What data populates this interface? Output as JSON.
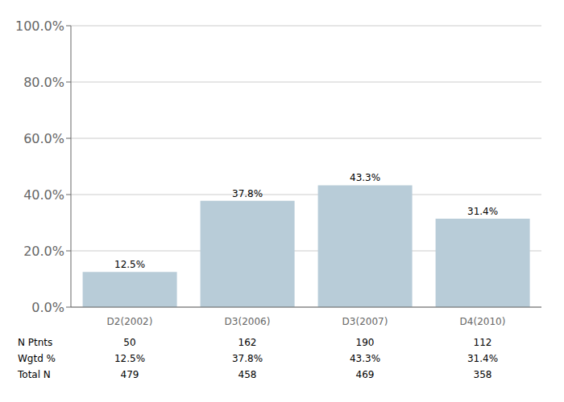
{
  "chart_data": {
    "type": "bar",
    "categories": [
      "D2(2002)",
      "D3(2006)",
      "D3(2007)",
      "D4(2010)"
    ],
    "values": [
      12.5,
      37.8,
      43.3,
      31.4
    ],
    "value_labels": [
      "12.5%",
      "37.8%",
      "43.3%",
      "31.4%"
    ],
    "data_labels": true,
    "color": "#b8ccd8",
    "ylim": [
      0,
      100
    ],
    "yticks": [
      {
        "value": 0,
        "label": "0.0%"
      },
      {
        "value": 20,
        "label": "20.0%"
      },
      {
        "value": 40,
        "label": "40.0%"
      },
      {
        "value": 60,
        "label": "60.0%"
      },
      {
        "value": 80,
        "label": "80.0%"
      },
      {
        "value": 100,
        "label": "100.0%"
      }
    ],
    "grid": true,
    "table": [
      {
        "label": "N Ptnts",
        "values": [
          50,
          162,
          190,
          112
        ]
      },
      {
        "label": "Wgtd %",
        "values": [
          12.5,
          37.8,
          43.3,
          31.4
        ],
        "value_labels": [
          "12.5%",
          "37.8%",
          "43.3%",
          "31.4%"
        ]
      },
      {
        "label": "Total N",
        "values": [
          479,
          458,
          469,
          358
        ]
      }
    ]
  }
}
